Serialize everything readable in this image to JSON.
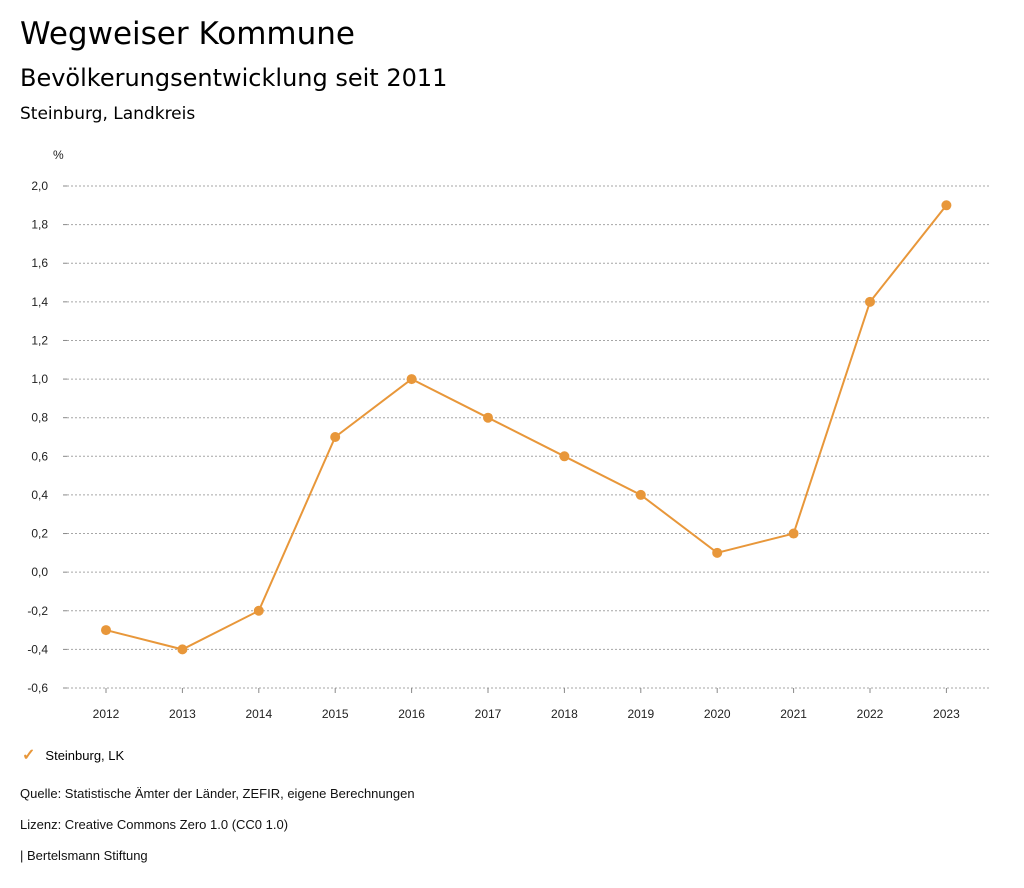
{
  "header": {
    "title": "Wegweiser Kommune",
    "subtitle": "Bevölkerungsentwicklung seit 2011",
    "region": "Steinburg, Landkreis"
  },
  "chart_data": {
    "type": "line",
    "ylabel": "%",
    "ylim": [
      -0.6,
      2.0
    ],
    "yticks": [
      "2,0",
      "1,8",
      "1,6",
      "1,4",
      "1,2",
      "1,0",
      "0,8",
      "0,6",
      "0,4",
      "0,2",
      "0,0",
      "-0,2",
      "-0,4",
      "-0,6"
    ],
    "categories": [
      "2012",
      "2013",
      "2014",
      "2015",
      "2016",
      "2017",
      "2018",
      "2019",
      "2020",
      "2021",
      "2022",
      "2023"
    ],
    "series": [
      {
        "name": "Steinburg, LK",
        "color": "#e8973a",
        "values": [
          -0.3,
          -0.4,
          -0.2,
          0.7,
          1.0,
          0.8,
          0.6,
          0.4,
          0.1,
          0.2,
          1.4,
          1.9
        ]
      }
    ],
    "grid": true,
    "legend": "bottom-left"
  },
  "legend": {
    "label": "Steinburg, LK",
    "icon": "check-icon"
  },
  "footer": {
    "source": "Quelle: Statistische Ämter der Länder, ZEFIR, eigene Berechnungen",
    "license": "Lizenz: Creative Commons Zero 1.0 (CC0 1.0)",
    "publisher": "| Bertelsmann Stiftung"
  }
}
